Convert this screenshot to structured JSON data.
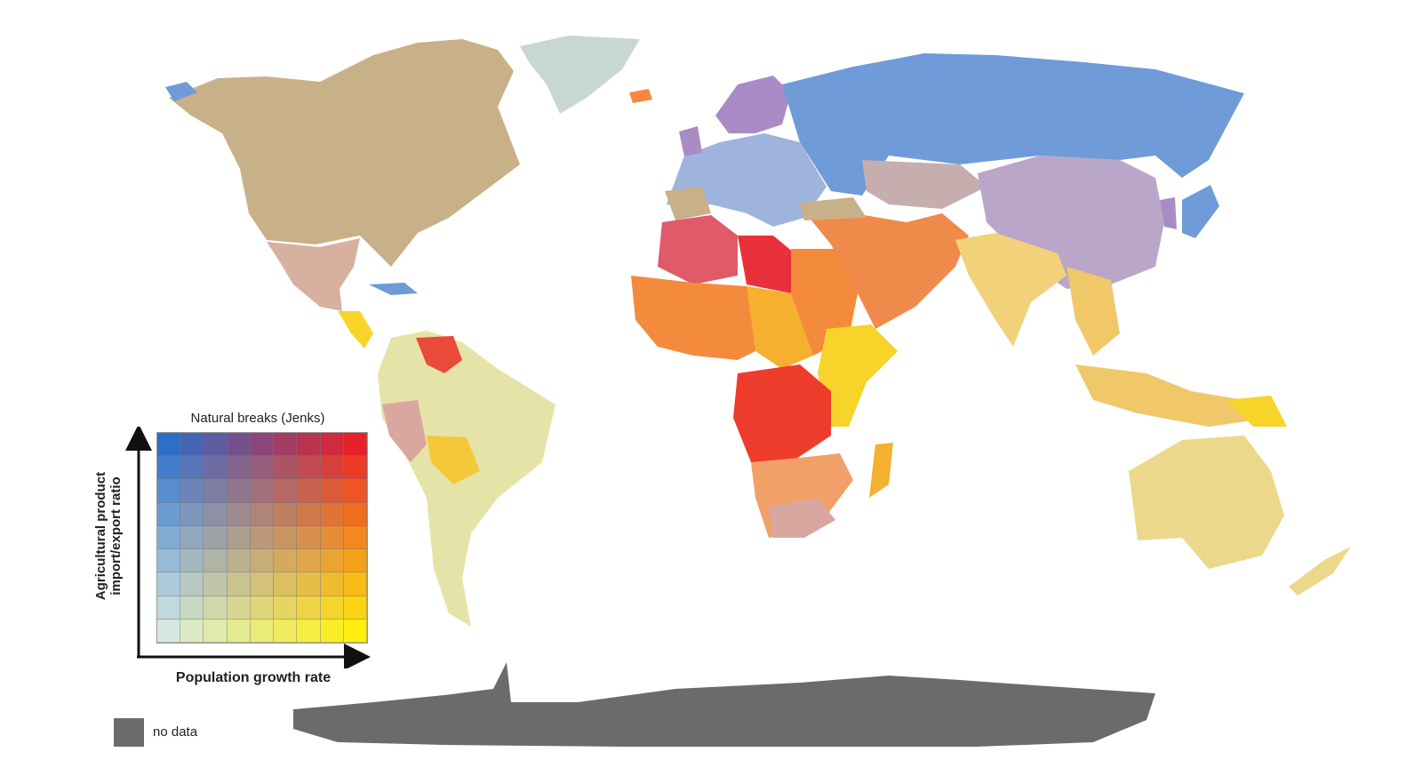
{
  "legend": {
    "title": "Natural breaks (Jenks)",
    "y_axis_line1": "Agricultural product",
    "y_axis_line2": "import/export ratio",
    "x_axis": "Population growth rate",
    "grid_size": 9,
    "corner_colors": {
      "top_left": "#2e6ec8",
      "top_right": "#e8202a",
      "bottom_left": "#d6e8df",
      "bottom_right": "#ffee10"
    }
  },
  "no_data": {
    "label": "no data",
    "color": "#6b6b6b"
  },
  "colors": {
    "north_america": "#c8b089",
    "greenland": "#c8d8d0",
    "russia": "#6f9bd8",
    "europe": "#9fb4dc",
    "scandinavia": "#a98bc6",
    "china": "#b9a6c8",
    "central_asia": "#c6aeae",
    "middle_east": "#f08a4a",
    "india": "#f1d27a",
    "north_africa_west": "#e05a6a",
    "libya": "#e8303a",
    "west_africa": "#f48a3c",
    "sahel": "#f5b030",
    "east_africa": "#f7d42a",
    "central_africa": "#ee3c2c",
    "southern_africa": "#f2a06a",
    "south_africa": "#d8a8a0",
    "south_america": "#e6e3a8",
    "bolivia": "#f5c83a",
    "venezuela": "#ea4a3a",
    "mexico": "#d7b0a0",
    "australia": "#ebd88a",
    "se_asia": "#f0c86a",
    "antarctica": "#6b6b6b"
  }
}
